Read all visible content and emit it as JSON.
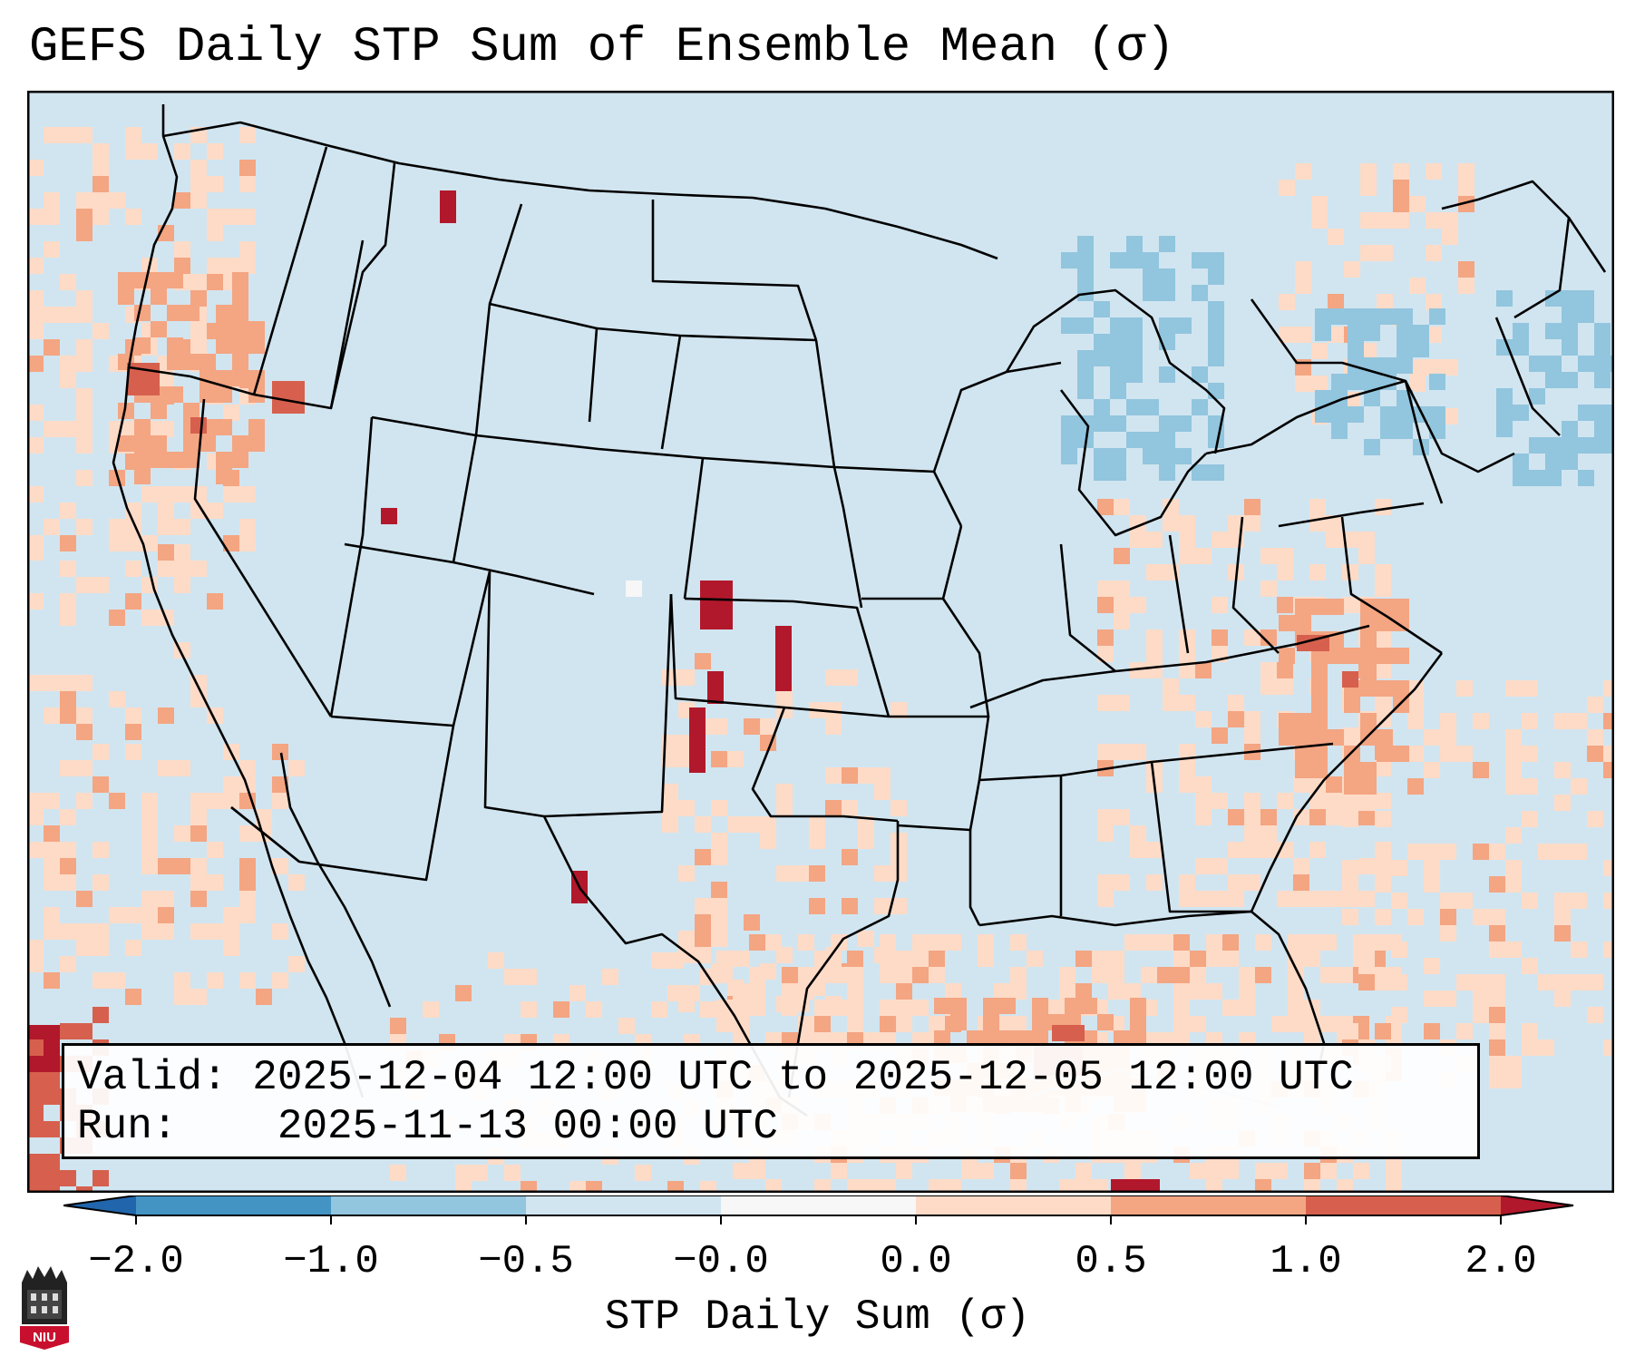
{
  "title": "GEFS Daily STP Sum of Ensemble Mean (σ)",
  "info": {
    "valid_label": "Valid:",
    "valid_value": "2025-12-04 12:00 UTC to 2025-12-05 12:00 UTC",
    "run_label": "Run:",
    "run_value": "2025-11-13 00:00 UTC"
  },
  "colorbar": {
    "label": "STP Daily Sum (σ)",
    "ticks": [
      "−2.0",
      "−1.0",
      "−0.5",
      "−0.0",
      "0.0",
      "0.5",
      "1.0",
      "2.0"
    ],
    "colors": [
      "#4393c3",
      "#92c5de",
      "#d1e5f0",
      "#f7f7f7",
      "#fddbc7",
      "#f4a582",
      "#d6604d"
    ],
    "under_color": "#2166ac",
    "over_color": "#b2182b"
  },
  "map": {
    "region": "Contiguous United States",
    "background_color": "#d1e5f0",
    "notable_features": [
      {
        "area": "Southwest Kansas",
        "category": "> 2.0",
        "color": "#b2182b"
      },
      {
        "area": "Central Oklahoma",
        "category": "> 2.0",
        "color": "#b2182b"
      },
      {
        "area": "Texas Panhandle",
        "category": "> 2.0",
        "color": "#b2182b"
      },
      {
        "area": "Gulf of Mexico",
        "category": "0.5 to 1.0",
        "color": "#f4a582"
      },
      {
        "area": "Carolinas",
        "category": "0.5 to 1.0",
        "color": "#f4a582"
      },
      {
        "area": "Great Lakes",
        "category": "-1.0 to -0.5",
        "color": "#92c5de"
      },
      {
        "area": "New England",
        "category": "-1.0 to -0.5",
        "color": "#92c5de"
      }
    ]
  },
  "logo": {
    "text": "NIU",
    "color": "#c8102e"
  }
}
